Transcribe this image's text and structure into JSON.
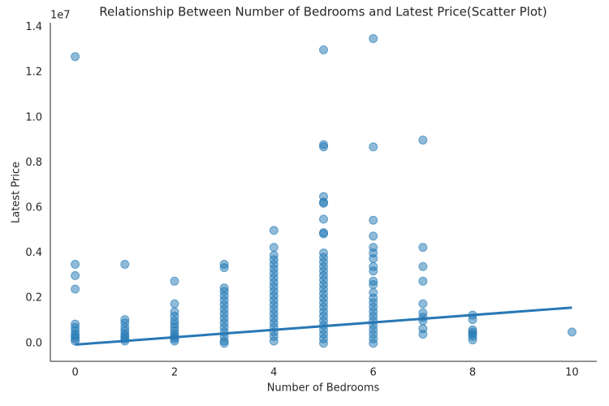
{
  "chart_data": {
    "type": "scatter",
    "title": "Relationship Between Number of Bedrooms and Latest Price(Scatter Plot)",
    "x_label": "Number of Bedrooms",
    "y_label": "Latest Price",
    "y_offset_label": "1e7",
    "color": "#1f77b4",
    "x": [
      0,
      0,
      0,
      0,
      0,
      0,
      0,
      0,
      0,
      0,
      0,
      1,
      1,
      1,
      1,
      1,
      1,
      1,
      1,
      1,
      2,
      2,
      2,
      2,
      2,
      2,
      2,
      2,
      2,
      2,
      2,
      2,
      3,
      3,
      3,
      3,
      3,
      3,
      3,
      3,
      3,
      3,
      3,
      3,
      3,
      3,
      3,
      3,
      4,
      4,
      4,
      4,
      4,
      4,
      4,
      4,
      4,
      4,
      4,
      4,
      4,
      4,
      4,
      4,
      4,
      4,
      4,
      4,
      4,
      4,
      5,
      5,
      5,
      5,
      5,
      5,
      5,
      5,
      5,
      5,
      5,
      5,
      5,
      5,
      5,
      5,
      5,
      5,
      5,
      5,
      5,
      5,
      5,
      5,
      5,
      5,
      5,
      5,
      5,
      5,
      6,
      6,
      6,
      6,
      6,
      6,
      6,
      6,
      6,
      6,
      6,
      6,
      6,
      6,
      6,
      6,
      6,
      6,
      6,
      6,
      6,
      6,
      6,
      7,
      7,
      7,
      7,
      7,
      7,
      7,
      7,
      7,
      7,
      8,
      8,
      8,
      8,
      8,
      8,
      8,
      10
    ],
    "values": [
      12700000,
      3500000,
      3000000,
      2400000,
      850000,
      700000,
      550000,
      400000,
      300000,
      200000,
      100000,
      3500000,
      1050000,
      900000,
      700000,
      550000,
      400000,
      300000,
      200000,
      100000,
      2750000,
      1750000,
      1400000,
      1200000,
      1000000,
      850000,
      700000,
      550000,
      400000,
      300000,
      200000,
      100000,
      3500000,
      3350000,
      2450000,
      2300000,
      2100000,
      1900000,
      1700000,
      1500000,
      1300000,
      1100000,
      900000,
      700000,
      500000,
      300000,
      100000,
      0,
      5000000,
      4250000,
      3900000,
      3700000,
      3500000,
      3300000,
      3100000,
      2900000,
      2700000,
      2500000,
      2300000,
      2100000,
      1900000,
      1700000,
      1500000,
      1300000,
      1100000,
      900000,
      700000,
      500000,
      300000,
      100000,
      13000000,
      8800000,
      8700000,
      6500000,
      6250000,
      6200000,
      5500000,
      4900000,
      4850000,
      4000000,
      3800000,
      3600000,
      3400000,
      3200000,
      3000000,
      2800000,
      2600000,
      2400000,
      2200000,
      2000000,
      1800000,
      1600000,
      1400000,
      1200000,
      1000000,
      800000,
      600000,
      400000,
      200000,
      0,
      13500000,
      8700000,
      5450000,
      4750000,
      4250000,
      4000000,
      3750000,
      3400000,
      3200000,
      2750000,
      2600000,
      2250000,
      2000000,
      1800000,
      1600000,
      1400000,
      1200000,
      1000000,
      800000,
      600000,
      400000,
      200000,
      0,
      9000000,
      4250000,
      3400000,
      2750000,
      1750000,
      1350000,
      1150000,
      1000000,
      650000,
      400000,
      1250000,
      1050000,
      600000,
      500000,
      400000,
      300000,
      150000,
      500000
    ],
    "trend_line": {
      "x": [
        0,
        10
      ],
      "values": [
        -60000,
        1580000
      ],
      "color": "#2878b5"
    },
    "xlim": [
      -0.5,
      10.5
    ],
    "xticks": [
      0,
      2,
      4,
      6,
      8,
      10
    ],
    "ylim": [
      -800000,
      14200000
    ],
    "yticks": [
      {
        "value": 0,
        "label": "0.0"
      },
      {
        "value": 2000000,
        "label": "0.2"
      },
      {
        "value": 4000000,
        "label": "0.4"
      },
      {
        "value": 6000000,
        "label": "0.6"
      },
      {
        "value": 8000000,
        "label": "0.8"
      },
      {
        "value": 10000000,
        "label": "1.0"
      },
      {
        "value": 12000000,
        "label": "1.2"
      },
      {
        "value": 14000000,
        "label": "1.4"
      }
    ],
    "grid": false
  }
}
